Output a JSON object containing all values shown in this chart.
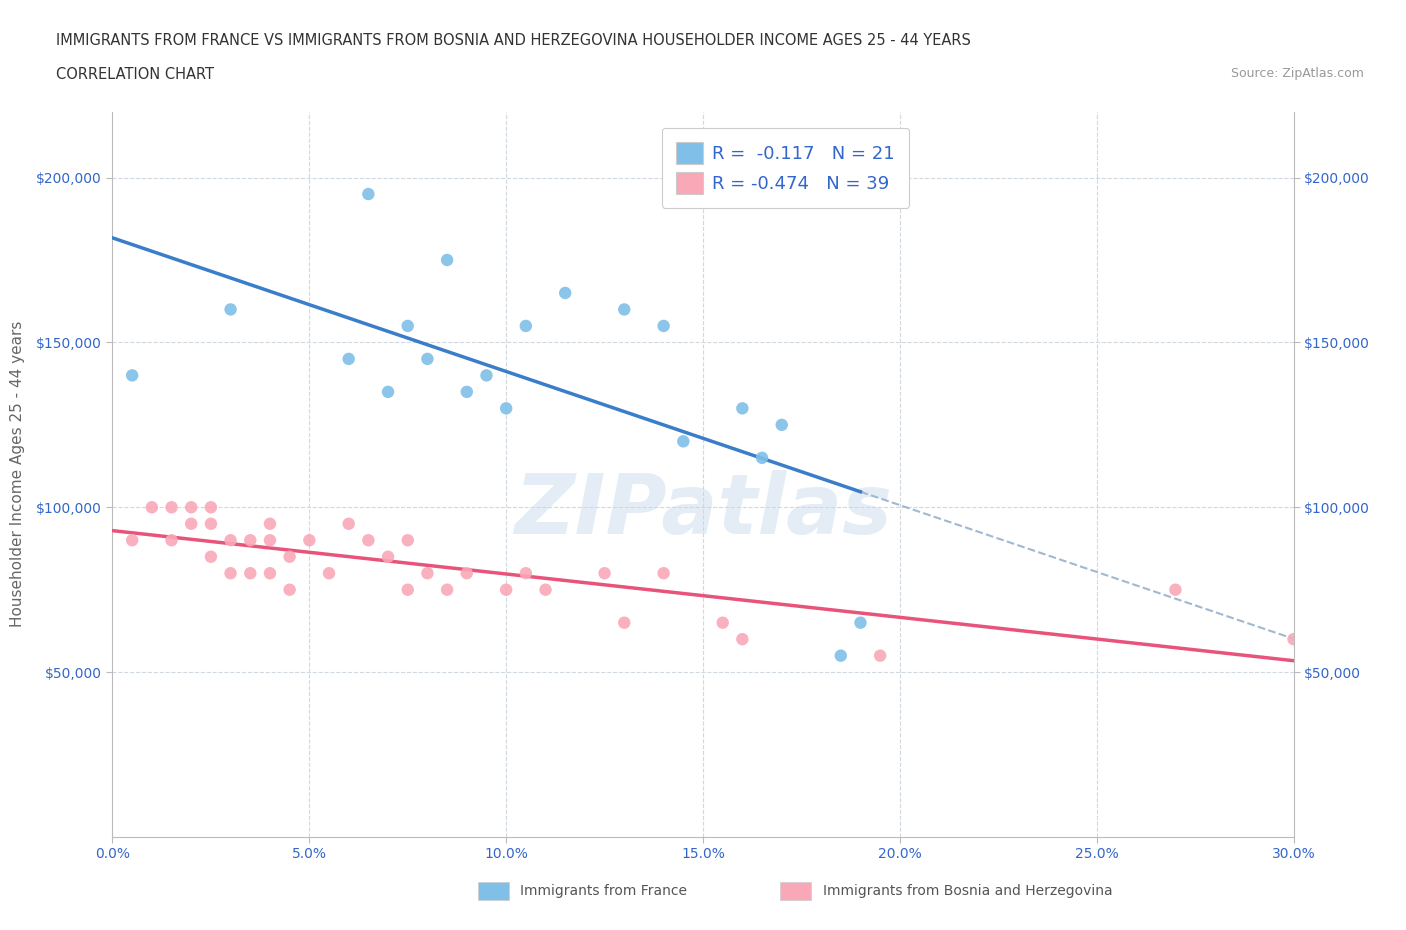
{
  "title_line1": "IMMIGRANTS FROM FRANCE VS IMMIGRANTS FROM BOSNIA AND HERZEGOVINA HOUSEHOLDER INCOME AGES 25 - 44 YEARS",
  "title_line2": "CORRELATION CHART",
  "source_text": "Source: ZipAtlas.com",
  "ylabel": "Householder Income Ages 25 - 44 years",
  "xlim": [
    0.0,
    0.3
  ],
  "ylim": [
    0,
    220000
  ],
  "xtick_values": [
    0.0,
    0.05,
    0.1,
    0.15,
    0.2,
    0.25,
    0.3
  ],
  "xtick_labels": [
    "0.0%",
    "5.0%",
    "10.0%",
    "15.0%",
    "20.0%",
    "25.0%",
    "30.0%"
  ],
  "ytick_values": [
    50000,
    100000,
    150000,
    200000
  ],
  "france_color": "#7fbfe8",
  "bosnia_color": "#f9a8b8",
  "france_line_color": "#3a7dc9",
  "bosnia_line_color": "#e8537a",
  "trend_dashed_color": "#a0b8d0",
  "legend_text_color": "#3366cc",
  "tick_color": "#3366cc",
  "axis_color": "#bbbbbb",
  "grid_color": "#d0d8e0",
  "france_R": -0.117,
  "france_N": 21,
  "bosnia_R": -0.474,
  "bosnia_N": 39,
  "watermark": "ZIPatlas",
  "france_x": [
    0.005,
    0.03,
    0.06,
    0.065,
    0.07,
    0.075,
    0.08,
    0.085,
    0.09,
    0.095,
    0.1,
    0.105,
    0.115,
    0.13,
    0.14,
    0.145,
    0.16,
    0.165,
    0.17,
    0.185,
    0.19
  ],
  "france_y": [
    140000,
    160000,
    145000,
    195000,
    135000,
    155000,
    145000,
    175000,
    135000,
    140000,
    130000,
    155000,
    165000,
    160000,
    155000,
    120000,
    130000,
    115000,
    125000,
    55000,
    65000
  ],
  "bosnia_x": [
    0.005,
    0.01,
    0.015,
    0.015,
    0.02,
    0.02,
    0.025,
    0.025,
    0.025,
    0.03,
    0.03,
    0.035,
    0.035,
    0.04,
    0.04,
    0.04,
    0.045,
    0.045,
    0.05,
    0.055,
    0.06,
    0.065,
    0.07,
    0.075,
    0.075,
    0.08,
    0.085,
    0.09,
    0.1,
    0.105,
    0.11,
    0.125,
    0.13,
    0.14,
    0.155,
    0.16,
    0.195,
    0.27,
    0.3
  ],
  "bosnia_y": [
    90000,
    100000,
    100000,
    90000,
    95000,
    100000,
    100000,
    95000,
    85000,
    90000,
    80000,
    90000,
    80000,
    95000,
    90000,
    80000,
    85000,
    75000,
    90000,
    80000,
    95000,
    90000,
    85000,
    90000,
    75000,
    80000,
    75000,
    80000,
    75000,
    80000,
    75000,
    80000,
    65000,
    80000,
    65000,
    60000,
    55000,
    75000,
    60000
  ]
}
